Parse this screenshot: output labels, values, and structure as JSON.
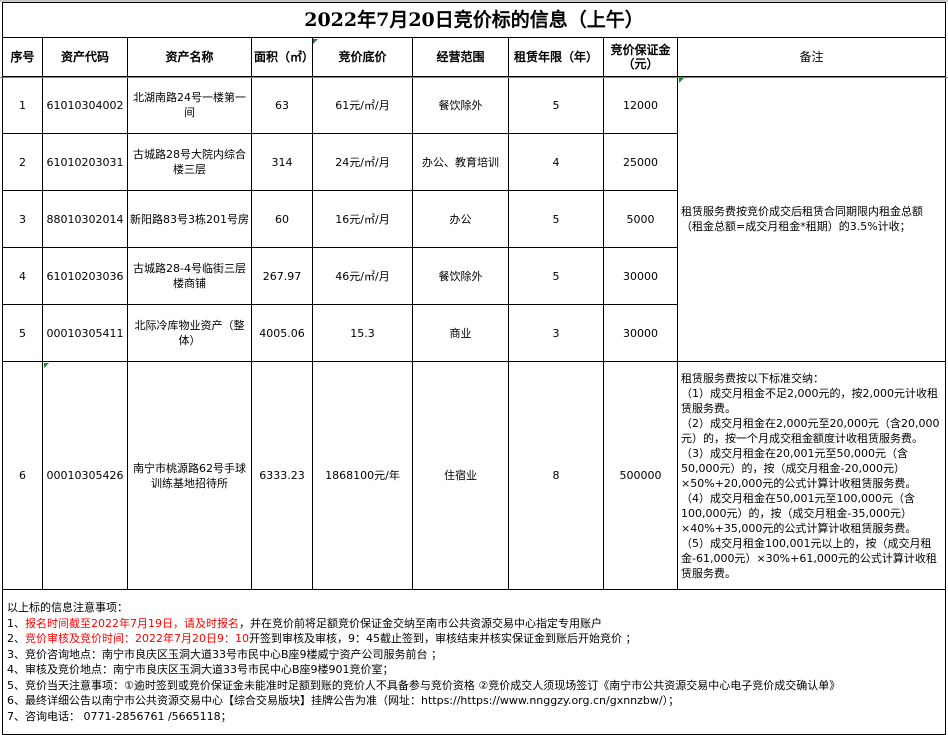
{
  "title": "2022年7月20日竞价标的信息（上午）",
  "headers": {
    "seq": "序号",
    "code": "资产代码",
    "name": "资产名称",
    "area": "面积（㎡）",
    "base_price": "竞价底价",
    "scope": "经营范围",
    "term": "租赁年限（年）",
    "deposit": "竞价保证金（元）",
    "remark": "备注"
  },
  "rows": [
    {
      "seq": "1",
      "code": "61010304002",
      "name": "北湖南路24号一楼第一间",
      "area": "63",
      "base_price": "61元/㎡/月",
      "scope": "餐饮除外",
      "term": "5",
      "deposit": "12000"
    },
    {
      "seq": "2",
      "code": "61010203031",
      "name": "古城路28号大院内综合楼三层",
      "area": "314",
      "base_price": "24元/㎡/月",
      "scope": "办公、教育培训",
      "term": "4",
      "deposit": "25000"
    },
    {
      "seq": "3",
      "code": "88010302014",
      "name": "新阳路83号3栋201号房",
      "area": "60",
      "base_price": "16元/㎡/月",
      "scope": "办公",
      "term": "5",
      "deposit": "5000"
    },
    {
      "seq": "4",
      "code": "61010203036",
      "name": "古城路28-4号临街三层楼商铺",
      "area": "267.97",
      "base_price": "46元/㎡/月",
      "scope": "餐饮除外",
      "term": "5",
      "deposit": "30000"
    },
    {
      "seq": "5",
      "code": "00010305411",
      "name": "北际冷库物业资产（整体）",
      "area": "4005.06",
      "base_price": "15.3",
      "scope": "商业",
      "term": "3",
      "deposit": "30000"
    },
    {
      "seq": "6",
      "code": "00010305426",
      "name": "南宁市桃源路62号手球训练基地招待所",
      "area": "6333.23",
      "base_price": "1868100元/年",
      "scope": "住宿业",
      "term": "8",
      "deposit": "500000"
    }
  ],
  "remark_1_5": "租赁服务费按竞价成交后租赁合同期限内租金总额（租金总额=成交月租金*租期）的3.5%计收；",
  "remark_6": [
    "租赁服务费按以下标准交纳：",
    "（1）成交月租金不足2,000元的，按2,000元计收租赁服务费。",
    "（2）成交月租金在2,000元至20,000元（含20,000元）的，按一个月成交租金额度计收租赁服务费。",
    "（3）成交月租金在20,001元至50,000元（含50,000元）的，按（成交月租金-20,000元）×50%+20,000元的公式计算计收租赁服务费。",
    "（4）成交月租金在50,001元至100,000元（含100,000元）的，按（成交月租金-35,000元）×40%+35,000元的公式计算计收租赁服务费。",
    "（5）成交月租金100,001元以上的，按（成交月租金-61,000元）×30%+61,000元的公式计算计收租赁服务费。"
  ],
  "notes": {
    "heading": "以上标的信息注意事项：",
    "n1_prefix": "1、",
    "n1_red": "报名时间截至2022年7月19日，请及时报名",
    "n1_rest": "，并在竞价前将足额竞价保证金交纳至南市公共资源交易中心指定专用账户",
    "n2_prefix": "2、",
    "n2_red": "竞价审核及竞价时间：2022年7月20日9：10",
    "n2_rest": "开签到审核及审核，9：45截止签到，审核结束并核实保证金到账后开始竞价 ；",
    "n3": "3、竞价咨询地点：南宁市良庆区玉洞大道33号市民中心B座9楼威宁资产公司服务前台 ；",
    "n4": "4、审核及竞价地点：南宁市良庆区玉洞大道33号市民中心B座9楼901竞价室；",
    "n5": "5、竞价当天注意事项：①逾时签到或竞价保证金未能准时足额到账的竞价人不具备参与竞价资格 ②竞价成交人须现场签订《南宁市公共资源交易中心电子竞价成交确认单》",
    "n6": "6、最终详细公告以南宁市公共资源交易中心【综合交易版块】挂牌公告为准（网址：https://https://www.nnggzy.org.cn/gxnnzbw/）；",
    "n7": "7、咨询电话： 0771-2856761 /5665118；"
  },
  "colors": {
    "red_text": "#ff0000",
    "border": "#000000",
    "selection_line": "#3aa86b"
  }
}
